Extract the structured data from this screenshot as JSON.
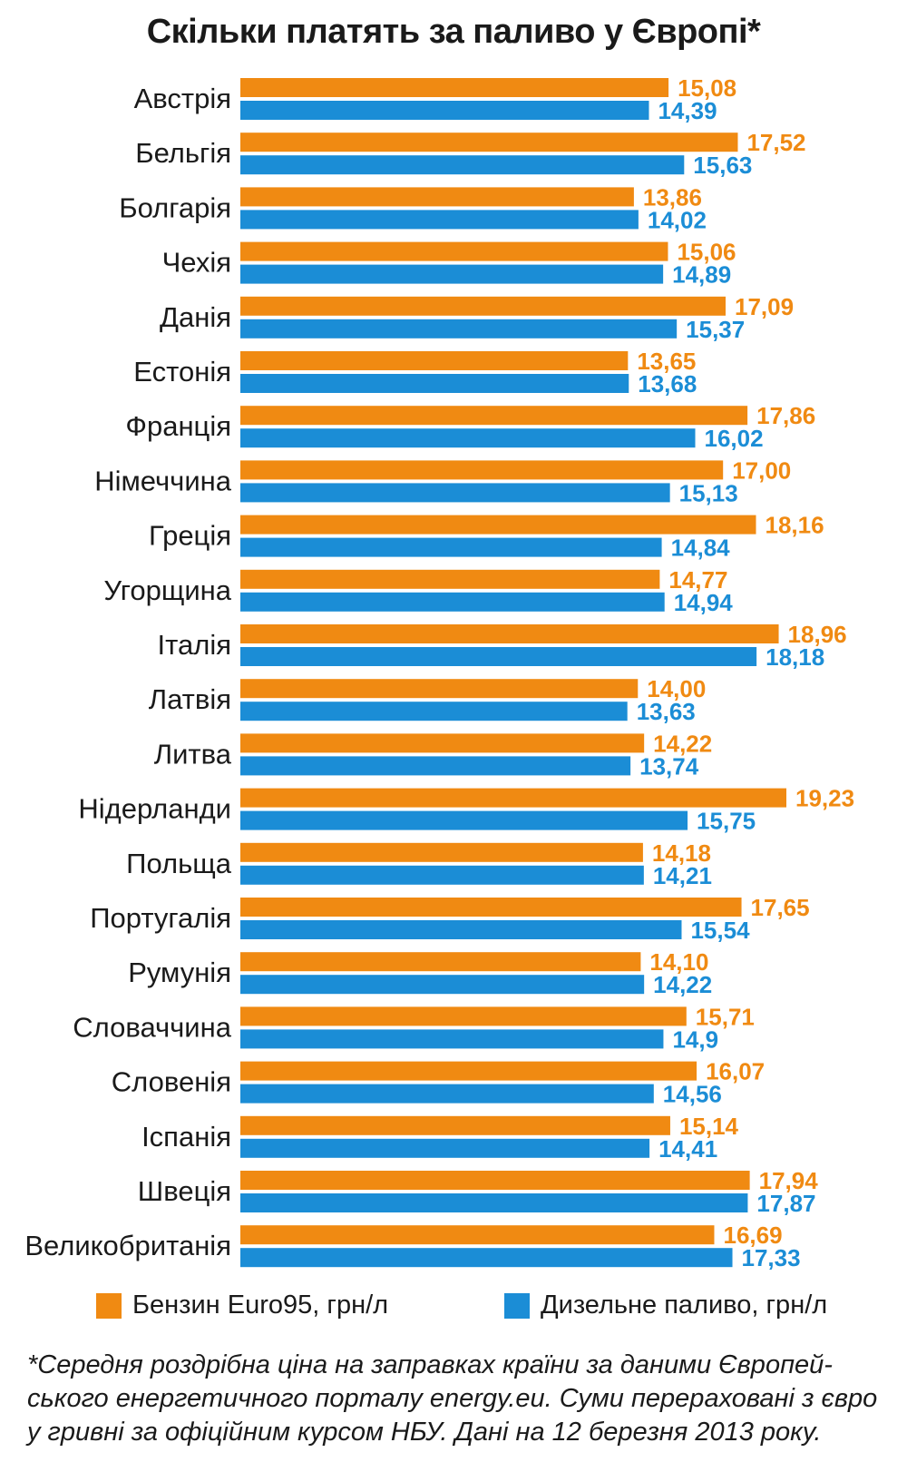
{
  "colors": {
    "petrol": "#f08a12",
    "diesel": "#1b8dd6"
  },
  "chart_data": {
    "type": "bar",
    "orientation": "horizontal",
    "title": "Скільки платять за паливо у Європі*",
    "categories": [
      "Австрія",
      "Бельгія",
      "Болгарія",
      "Чехія",
      "Данія",
      "Естонія",
      "Франція",
      "Німеччина",
      "Греція",
      "Угорщина",
      "Італія",
      "Латвія",
      "Литва",
      "Нідерланди",
      "Польща",
      "Португалія",
      "Румунія",
      "Словаччина",
      "Словенія",
      "Іспанія",
      "Швеція",
      "Великобританія"
    ],
    "series": [
      {
        "name": "Бензин Euro95, грн/л",
        "values": [
          15.08,
          17.52,
          13.86,
          15.06,
          17.09,
          13.65,
          17.86,
          17.0,
          18.16,
          14.77,
          18.96,
          14.0,
          14.22,
          19.23,
          14.18,
          17.65,
          14.1,
          15.71,
          16.07,
          15.14,
          17.94,
          16.69
        ],
        "labels": [
          "15,08",
          "17,52",
          "13,86",
          "15,06",
          "17,09",
          "13,65",
          "17,86",
          "17,00",
          "18,16",
          "14,77",
          "18,96",
          "14,00",
          "14,22",
          "19,23",
          "14,18",
          "17,65",
          "14,10",
          "15,71",
          "16,07",
          "15,14",
          "17,94",
          "16,69"
        ]
      },
      {
        "name": "Дизельне паливо, грн/л",
        "values": [
          14.39,
          15.63,
          14.02,
          14.89,
          15.37,
          13.68,
          16.02,
          15.13,
          14.84,
          14.94,
          18.18,
          13.63,
          13.74,
          15.75,
          14.21,
          15.54,
          14.22,
          14.9,
          14.56,
          14.41,
          17.87,
          17.33
        ],
        "labels": [
          "14,39",
          "15,63",
          "14,02",
          "14,89",
          "15,37",
          "13,68",
          "16,02",
          "15,13",
          "14,84",
          "14,94",
          "18,18",
          "13,63",
          "13,74",
          "15,75",
          "14,21",
          "15,54",
          "14,22",
          "14,9",
          "14,56",
          "14,41",
          "17,87",
          "17,33"
        ]
      }
    ],
    "xlim": [
      0,
      19.23
    ],
    "legend": [
      "Бензин Euro95, грн/л",
      "Дизельне паливо, грн/л"
    ],
    "legend_position": "bottom",
    "grid": false
  },
  "footnote": [
    "*Середня роздрібна ціна на заправках країни за даними Європей-",
    "ського енергетичного порталу energy.eu. Суми перераховані з євро",
    "у гривні за офіційним курсом НБУ. Дані на 12 березня 2013 року."
  ]
}
